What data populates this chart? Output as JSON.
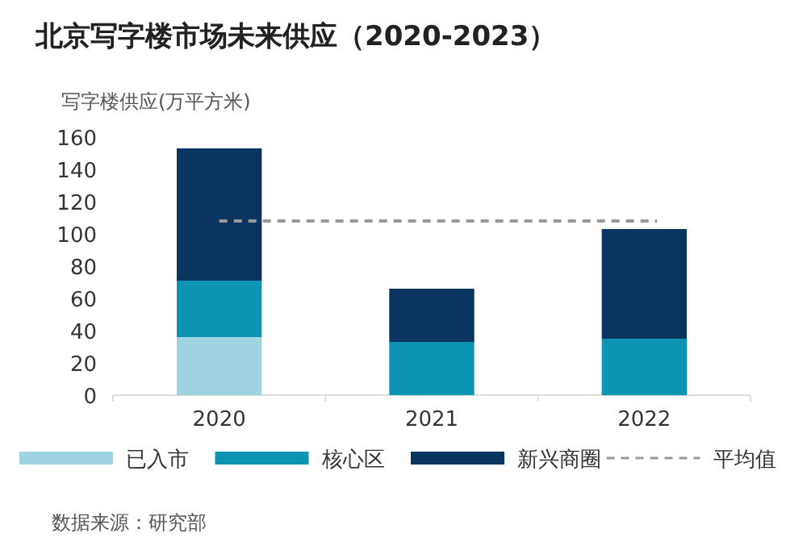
{
  "chart_data": {
    "type": "bar",
    "title": "北京写字楼市场未来供应（2020-2023）",
    "ylabel": "写字楼供应(万平方米)",
    "categories": [
      "2020",
      "2021",
      "2022"
    ],
    "stacked": true,
    "series": [
      {
        "name": "已入市",
        "color": "#9fd3e0",
        "values": [
          36,
          0,
          0
        ]
      },
      {
        "name": "核心区",
        "color": "#0e94b3",
        "values": [
          35,
          33,
          35
        ]
      },
      {
        "name": "新兴商圈",
        "color": "#0a3561",
        "values": [
          82,
          33,
          68
        ]
      }
    ],
    "ylim": [
      0,
      160
    ],
    "yticks": [
      0,
      20,
      40,
      60,
      80,
      100,
      120,
      140,
      160
    ],
    "ref_lines": [
      {
        "axis": "y",
        "value": 108,
        "label": "平均值",
        "color": "#999999",
        "line_style": "dashed"
      }
    ],
    "legend": "bottom",
    "grid": false,
    "annotations": [
      "数据来源：研究部"
    ]
  }
}
